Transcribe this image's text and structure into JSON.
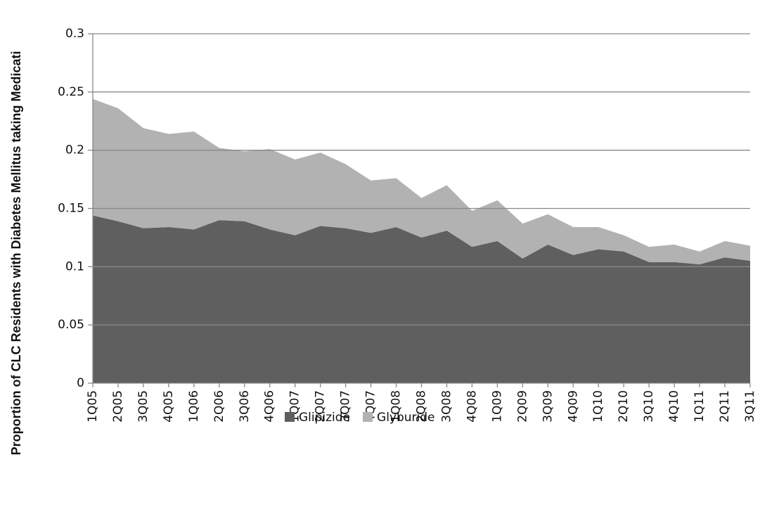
{
  "chart_data": {
    "type": "stacked_area",
    "y_label": "Proportion of CLC Residents with Diabetes Mellitus taking Medicati",
    "categories": [
      "1Q05",
      "2Q05",
      "3Q05",
      "4Q05",
      "1Q06",
      "2Q06",
      "3Q06",
      "4Q06",
      "1Q07",
      "2Q07",
      "3Q07",
      "4Q07",
      "1Q08",
      "2Q08",
      "3Q08",
      "4Q08",
      "1Q09",
      "2Q09",
      "3Q09",
      "4Q09",
      "1Q10",
      "2Q10",
      "3Q10",
      "4Q10",
      "1Q11",
      "2Q11",
      "3Q11"
    ],
    "series": [
      {
        "name": "Glipizide",
        "color": "#5f5f5f",
        "values": [
          0.144,
          0.139,
          0.133,
          0.134,
          0.132,
          0.14,
          0.139,
          0.132,
          0.127,
          0.135,
          0.133,
          0.129,
          0.134,
          0.125,
          0.131,
          0.117,
          0.122,
          0.107,
          0.119,
          0.11,
          0.115,
          0.113,
          0.104,
          0.104,
          0.102,
          0.108,
          0.105
        ]
      },
      {
        "name": "Glyburide",
        "color": "#b2b2b2",
        "values": [
          0.1,
          0.097,
          0.086,
          0.08,
          0.084,
          0.062,
          0.06,
          0.069,
          0.065,
          0.063,
          0.055,
          0.045,
          0.042,
          0.034,
          0.039,
          0.031,
          0.035,
          0.03,
          0.026,
          0.024,
          0.019,
          0.014,
          0.013,
          0.015,
          0.011,
          0.014,
          0.013
        ]
      }
    ],
    "ylim": [
      0,
      0.3
    ],
    "yticks": [
      0,
      0.05,
      0.1,
      0.15,
      0.2,
      0.25,
      0.3
    ],
    "grid": true,
    "legend": "bottom"
  }
}
